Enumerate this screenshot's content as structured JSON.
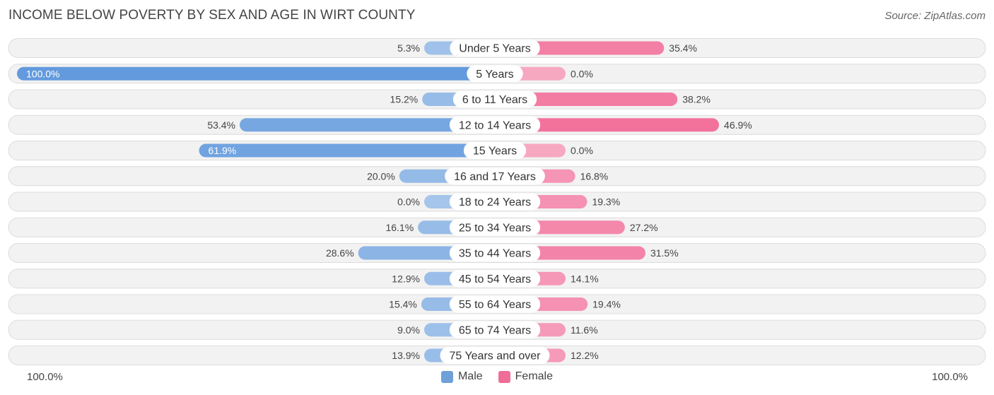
{
  "chart_data": {
    "type": "bar",
    "title": "INCOME BELOW POVERTY BY SEX AND AGE IN WIRT COUNTY",
    "source": "Source: ZipAtlas.com",
    "categories": [
      "Under 5 Years",
      "5 Years",
      "6 to 11 Years",
      "12 to 14 Years",
      "15 Years",
      "16 and 17 Years",
      "18 to 24 Years",
      "25 to 34 Years",
      "35 to 44 Years",
      "45 to 54 Years",
      "55 to 64 Years",
      "65 to 74 Years",
      "75 Years and over"
    ],
    "series": [
      {
        "name": "Male",
        "color": "#7aa7df",
        "values": [
          5.3,
          100.0,
          15.2,
          53.4,
          61.9,
          20.0,
          0.0,
          16.1,
          28.6,
          12.9,
          15.4,
          9.0,
          13.9
        ],
        "labels": [
          "5.3%",
          "100.0%",
          "15.2%",
          "53.4%",
          "61.9%",
          "20.0%",
          "0.0%",
          "16.1%",
          "28.6%",
          "12.9%",
          "15.4%",
          "9.0%",
          "13.9%"
        ]
      },
      {
        "name": "Female",
        "color": "#f07aa0",
        "values": [
          35.4,
          0.0,
          38.2,
          46.9,
          0.0,
          16.8,
          19.3,
          27.2,
          31.5,
          14.1,
          19.4,
          11.6,
          12.2
        ],
        "labels": [
          "35.4%",
          "0.0%",
          "38.2%",
          "46.9%",
          "0.0%",
          "16.8%",
          "19.3%",
          "27.2%",
          "31.5%",
          "14.1%",
          "19.4%",
          "11.6%",
          "12.2%"
        ]
      }
    ],
    "xlim": [
      -100,
      100
    ],
    "axis_left_label": "100.0%",
    "axis_right_label": "100.0%",
    "legend_position": "bottom-center"
  }
}
